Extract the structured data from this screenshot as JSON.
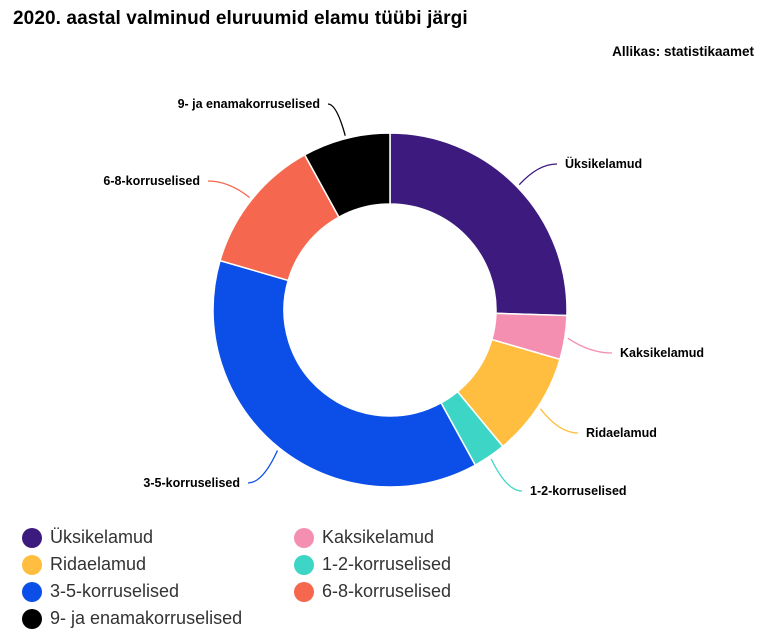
{
  "title": "2020. aastal valminud eluruumid elamu tüübi järgi",
  "source": "Allikas: statistikaamet",
  "chart_data": {
    "type": "pie",
    "donut": true,
    "legend_position": "bottom",
    "series": [
      {
        "name": "Üksikelamud",
        "value": 25.5,
        "color": "#3d1a7e"
      },
      {
        "name": "Kaksikelamud",
        "value": 4.0,
        "color": "#f48fb1"
      },
      {
        "name": "Ridaelamud",
        "value": 9.5,
        "color": "#ffbe3f"
      },
      {
        "name": "1-2-korruselised",
        "value": 3.0,
        "color": "#3dd6c6"
      },
      {
        "name": "3-5-korruselised",
        "value": 37.5,
        "color": "#0c4fe8"
      },
      {
        "name": "6-8-korruselised",
        "value": 12.5,
        "color": "#f5674e"
      },
      {
        "name": "9- ja enamakorruselised",
        "value": 8.0,
        "color": "#000000"
      }
    ]
  }
}
